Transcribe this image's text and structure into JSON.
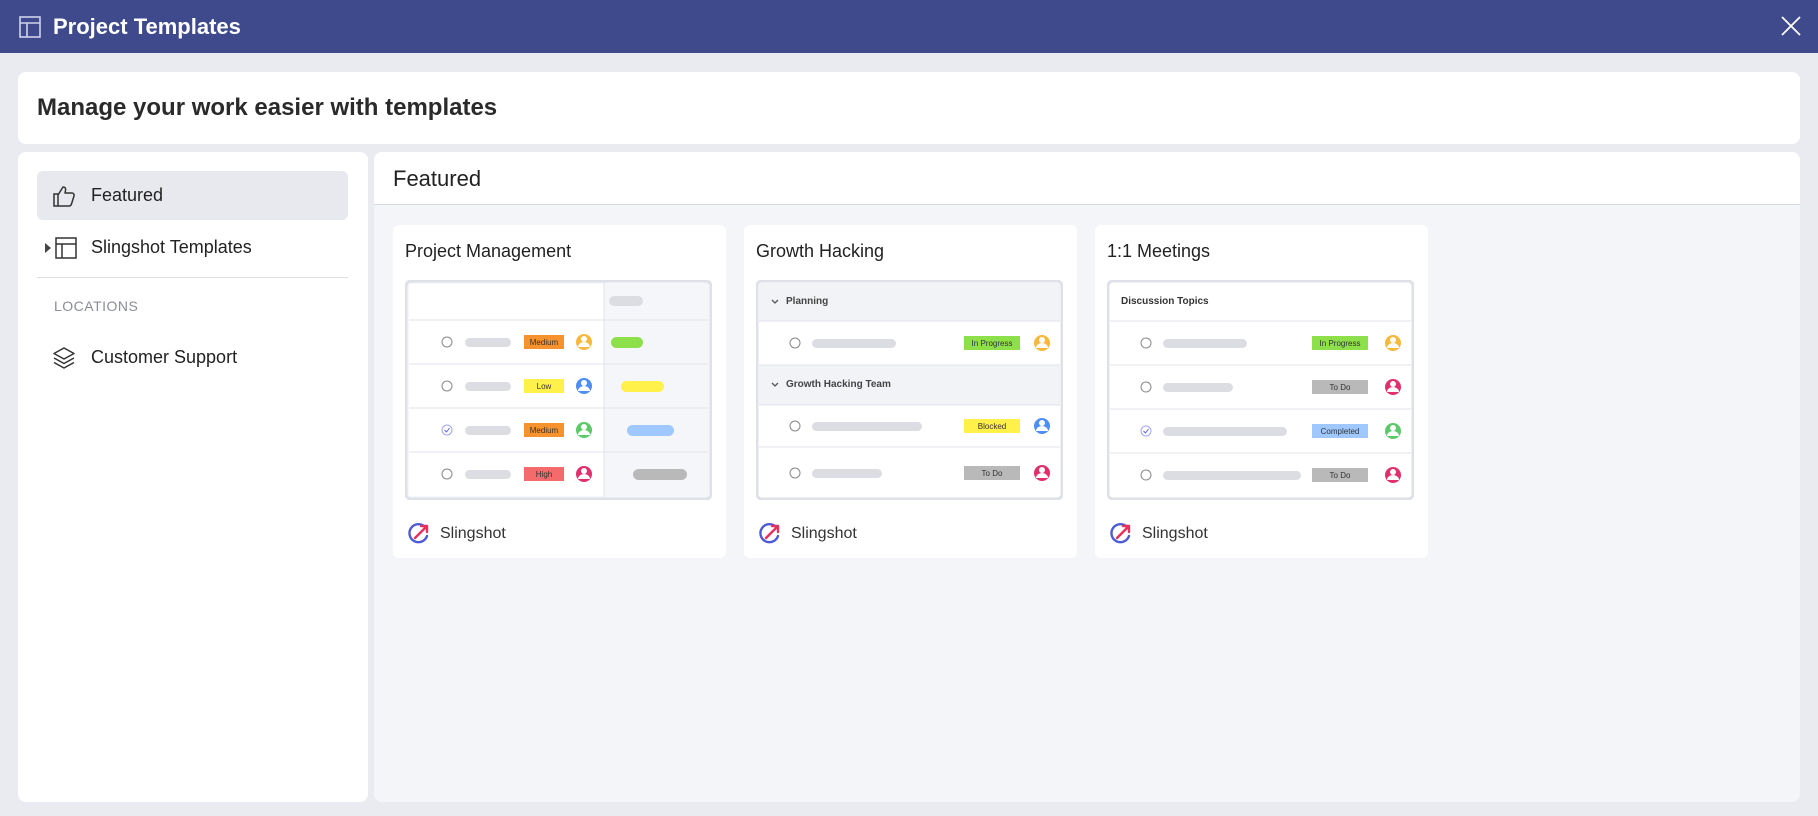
{
  "window": {
    "title": "Project Templates",
    "icon": "template-icon",
    "close_icon": "close-icon"
  },
  "header": {
    "text": "Manage your work easier with templates"
  },
  "sidebar": {
    "items": [
      {
        "label": "Featured",
        "icon": "thumbs-up-icon",
        "active": true
      },
      {
        "label": "Slingshot Templates",
        "icon": "template-icon",
        "active": false
      }
    ],
    "locations_heading": "LOCATIONS",
    "locations": [
      {
        "label": "Customer Support",
        "icon": "layers-icon"
      }
    ]
  },
  "main": {
    "title": "Featured",
    "cards": [
      {
        "title": "Project Management",
        "brand": "Slingshot",
        "rows": [
          {
            "priority": "Medium",
            "color": "#f7932e",
            "checked": false
          },
          {
            "priority": "Low",
            "color": "#fff04a",
            "checked": false
          },
          {
            "priority": "Medium",
            "color": "#f7932e",
            "checked": true
          },
          {
            "priority": "High",
            "color": "#f56a6a",
            "checked": false
          }
        ]
      },
      {
        "title": "Growth Hacking",
        "brand": "Slingshot",
        "groups": [
          {
            "name": "Planning",
            "status": "In Progress"
          },
          {
            "name": "Growth Hacking Team",
            "statuses": [
              "Blocked",
              "To Do"
            ]
          }
        ]
      },
      {
        "title": "1:1 Meetings",
        "brand": "Slingshot",
        "section": "Discussion Topics",
        "statuses": [
          "In Progress",
          "To Do",
          "Completed",
          "To Do"
        ]
      }
    ]
  },
  "colors": {
    "titlebar": "#3e4a8c",
    "in_progress": "#8ee04a",
    "blocked": "#fff04a",
    "todo": "#b9b9b9",
    "completed": "#9ec8ff"
  }
}
